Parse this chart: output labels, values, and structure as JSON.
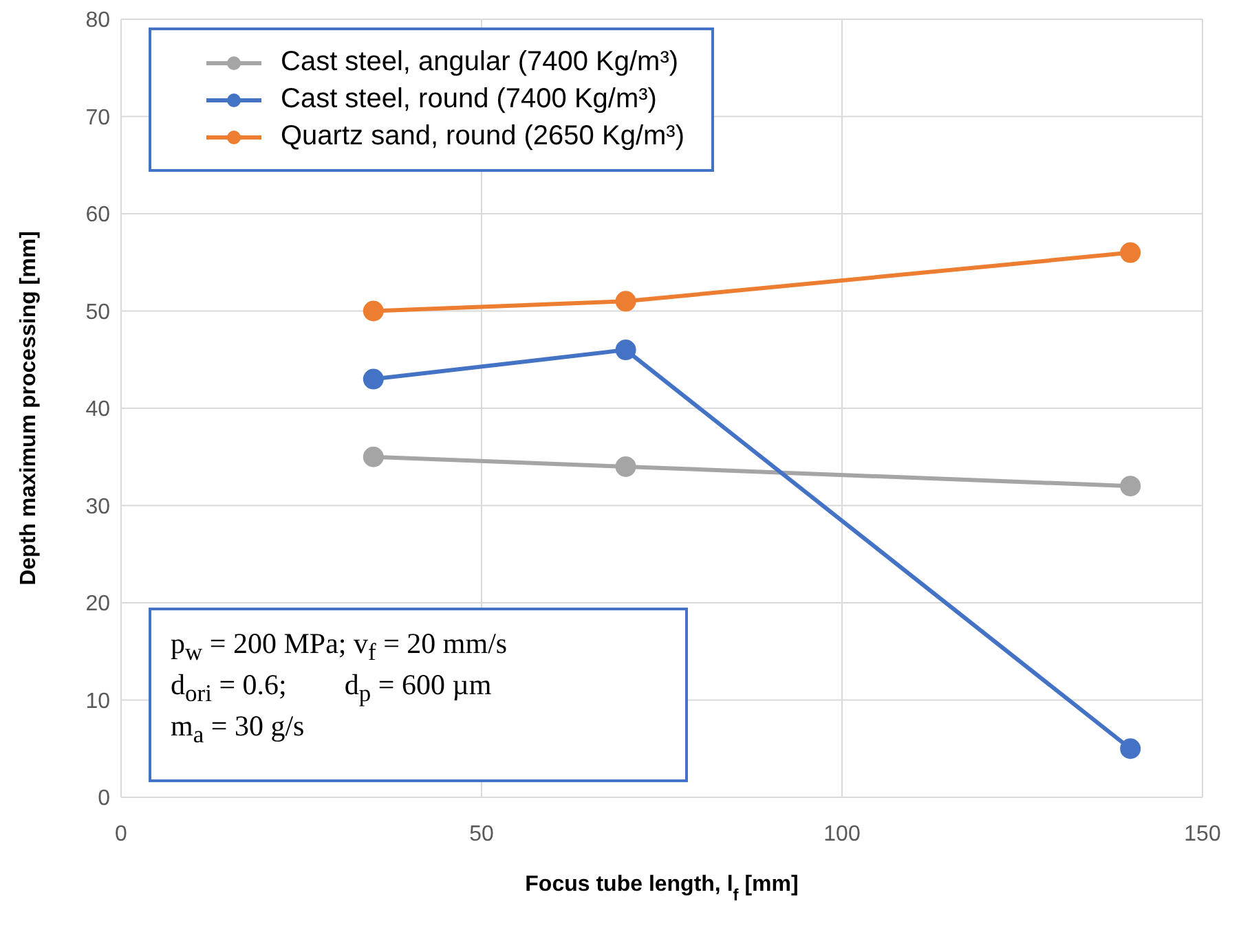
{
  "chart_data": {
    "type": "line",
    "xlabel": "Focus tube length, l$_{f}$ [mm]",
    "ylabel": "Depth maximum processing [mm]",
    "x": [
      35,
      70,
      140
    ],
    "series": [
      {
        "name": "Cast steel, angular (7400 Kg/m³)",
        "color": "#a5a5a5",
        "values": [
          35,
          34,
          32
        ]
      },
      {
        "name": "Cast steel, round (7400 Kg/m³)",
        "color": "#4472c4",
        "values": [
          43,
          46,
          5
        ]
      },
      {
        "name": "Quartz sand, round (2650 Kg/m³)",
        "color": "#ed7d31",
        "values": [
          50,
          51,
          56
        ]
      }
    ],
    "xlim": [
      0,
      150
    ],
    "xticks": [
      0,
      50,
      100,
      150
    ],
    "ylim": [
      0,
      80
    ],
    "yticks": [
      0,
      10,
      20,
      30,
      40,
      50,
      60,
      70,
      80
    ],
    "grid": true,
    "legend": "top left",
    "marker": "circle",
    "line_style": "solid",
    "annotations": [
      "p$_{w}$ = 200 MPa; v$_{f}$ = 20 mm/s",
      "d$_{ori}$ = 0.6;        d$_{p}$ = 600 µm",
      "m$_{a}$ = 30 g/s"
    ]
  }
}
